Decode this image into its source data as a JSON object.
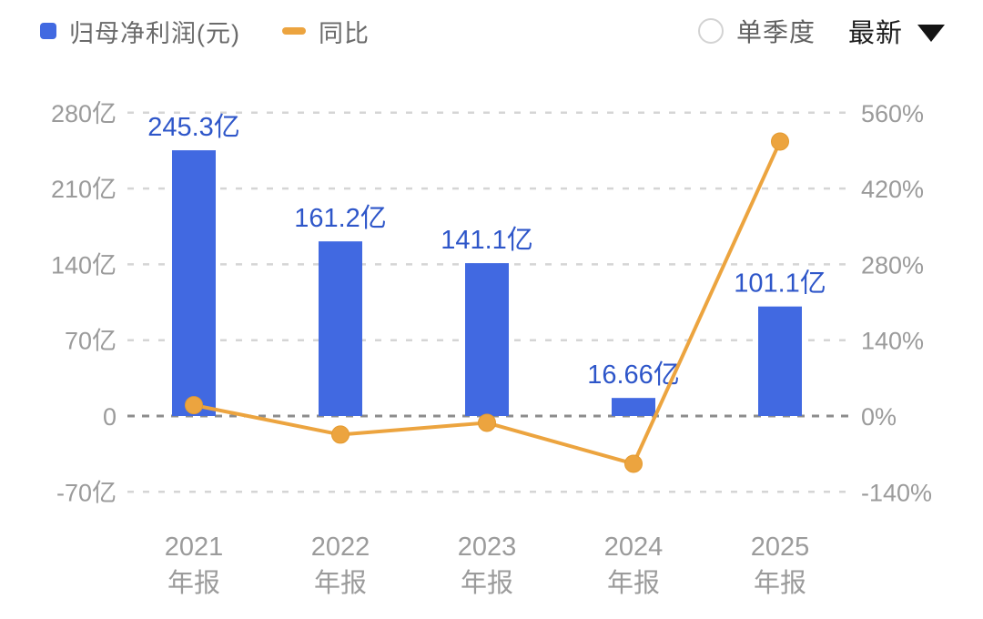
{
  "legend": {
    "series1_label": "归母净利润(元)",
    "series2_label": "同比"
  },
  "controls": {
    "radio_label": "单季度",
    "radio_checked": false,
    "dropdown_value": "最新"
  },
  "colors": {
    "bar": "#4169e1",
    "bar_label": "#2e56c9",
    "line": "#eca43f",
    "line_stroke": "#e49a2f",
    "axis_text": "#9b9b9b",
    "grid_light": "#d5d5d5",
    "grid_zero": "#8c8c8c",
    "legend_text": "#6a6a6a",
    "control_text": "#1c1c1c"
  },
  "chart_data": {
    "type": "bar+line",
    "categories": [
      [
        "2021",
        "年报"
      ],
      [
        "2022",
        "年报"
      ],
      [
        "2023",
        "年报"
      ],
      [
        "2024",
        "年报"
      ],
      [
        "2025",
        "年报"
      ]
    ],
    "series": [
      {
        "name": "归母净利润(元)",
        "type": "bar",
        "axis": "left",
        "unit": "亿",
        "values": [
          245.3,
          161.2,
          141.1,
          16.66,
          101.1
        ],
        "labels": [
          "245.3亿",
          "161.2亿",
          "141.1亿",
          "16.66亿",
          "101.1亿"
        ]
      },
      {
        "name": "同比",
        "type": "line",
        "axis": "right",
        "unit": "%",
        "values": [
          20,
          -34.3,
          -12.5,
          -88.2,
          506.8
        ]
      }
    ],
    "left_axis": {
      "tick_labels": [
        "280亿",
        "210亿",
        "140亿",
        "70亿",
        "0",
        "-70亿"
      ],
      "tick_values": [
        280,
        210,
        140,
        70,
        0,
        -70
      ],
      "range": [
        -70,
        280
      ]
    },
    "right_axis": {
      "tick_labels": [
        "560%",
        "420%",
        "280%",
        "140%",
        "0%",
        "-140%"
      ],
      "tick_values": [
        560,
        420,
        280,
        140,
        0,
        -140
      ],
      "range": [
        -140,
        560
      ]
    },
    "grid": "dashed",
    "legend_position": "top"
  }
}
